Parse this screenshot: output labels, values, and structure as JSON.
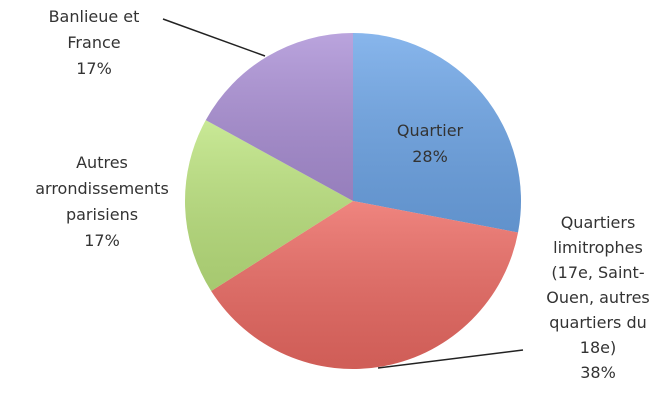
{
  "chart_data": {
    "type": "pie",
    "categories": [
      "Quartier",
      "Quartiers limitrophes (17e, Saint-Ouen, autres quartiers du 18e)",
      "Autres arrondissements parisiens",
      "Banlieue et France"
    ],
    "values": [
      28,
      38,
      17,
      17
    ],
    "value_labels": [
      "28%",
      "38%",
      "17%",
      "17%"
    ],
    "colors": [
      "#6ea6e8",
      "#ec6a63",
      "#bde47f",
      "#ab90d6"
    ]
  }
}
